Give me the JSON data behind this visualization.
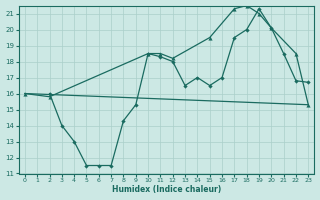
{
  "xlabel": "Humidex (Indice chaleur)",
  "background_color": "#cce8e4",
  "grid_color": "#aacfca",
  "line_color": "#1a6b60",
  "xlim": [
    -0.5,
    23.5
  ],
  "ylim": [
    11,
    21.5
  ],
  "yticks": [
    11,
    12,
    13,
    14,
    15,
    16,
    17,
    18,
    19,
    20,
    21
  ],
  "xticks": [
    0,
    1,
    2,
    3,
    4,
    5,
    6,
    7,
    8,
    9,
    10,
    11,
    12,
    13,
    14,
    15,
    16,
    17,
    18,
    19,
    20,
    21,
    22,
    23
  ],
  "line1_x": [
    0,
    23
  ],
  "line1_y": [
    16.0,
    15.3
  ],
  "line2_x": [
    2,
    3,
    4,
    5,
    6,
    7,
    8,
    9,
    10,
    11,
    12,
    13,
    14,
    15,
    16,
    17,
    18,
    19,
    20,
    21,
    22,
    23
  ],
  "line2_y": [
    16.0,
    14.0,
    13.0,
    11.5,
    11.5,
    11.5,
    14.3,
    15.3,
    18.5,
    18.3,
    18.0,
    16.5,
    17.0,
    16.5,
    17.0,
    19.5,
    20.0,
    21.3,
    20.1,
    18.5,
    16.8,
    16.7
  ],
  "line3_x": [
    0,
    2,
    10,
    11,
    12,
    15,
    17,
    18,
    19,
    20,
    22,
    23
  ],
  "line3_y": [
    16.0,
    15.8,
    18.5,
    18.5,
    18.2,
    19.5,
    21.3,
    21.5,
    21.0,
    20.1,
    18.5,
    15.3
  ]
}
